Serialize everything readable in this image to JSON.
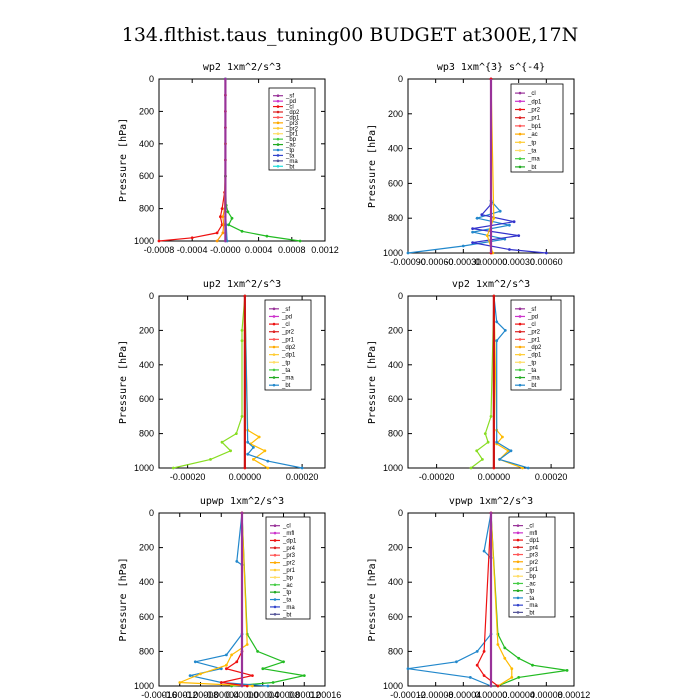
{
  "figure_title": "134.flthist.taus_tuning00  BUDGET at300E,17N",
  "chart_data": [
    {
      "type": "line",
      "title": "wp2  1xm^2/s^3",
      "ylabel": "Pressure [hPa]",
      "xlim": [
        -0.0008,
        0.0012
      ],
      "ylim": [
        1000,
        0
      ],
      "xticks": [
        -0.0008,
        -0.0004,
        0.0,
        0.0004,
        0.0008,
        0.0012
      ],
      "xtick_labels": [
        "-0.0008",
        "-0.0004",
        "-0.0000",
        "0.0004",
        "0.0008",
        "0.0012"
      ],
      "yticks": [
        0,
        200,
        400,
        600,
        800,
        1000
      ],
      "legend": [
        "_sf",
        "_pd",
        "_cl",
        "_dp2",
        "_dp1",
        "_pr3",
        "_pr2",
        "_pr1",
        "_bp",
        "_ac",
        "_tp",
        "_ta",
        "_ma",
        "_bt"
      ],
      "series": [
        {
          "name": "_dp1",
          "color": "#ee1111",
          "y": [
            0,
            100,
            200,
            300,
            400,
            500,
            600,
            700,
            800,
            850,
            900,
            950,
            980,
            1000
          ],
          "x": [
            0,
            0,
            0,
            0,
            0,
            0,
            0,
            -1e-05,
            -4e-05,
            -6e-05,
            -4e-05,
            -0.0001,
            -0.0004,
            -0.0008
          ]
        },
        {
          "name": "_pr3",
          "color": "#ff9900",
          "y": [
            0,
            400,
            800,
            850,
            900,
            950,
            1000
          ],
          "x": [
            0,
            0,
            -1e-05,
            -3e-05,
            -2e-05,
            -3e-05,
            -0.0001
          ]
        },
        {
          "name": "_ac",
          "color": "#22bb22",
          "y": [
            0,
            600,
            780,
            820,
            860,
            900,
            940,
            970,
            1000
          ],
          "x": [
            0,
            0,
            1e-05,
            3e-05,
            8e-05,
            4e-05,
            0.0002,
            0.0005,
            0.0009
          ]
        },
        {
          "name": "_tp",
          "color": "#2288cc",
          "y": [
            0,
            800,
            900,
            1000
          ],
          "x": [
            0,
            0,
            1e-05,
            2e-05
          ]
        },
        {
          "name": "_bt",
          "color": "#22dddd",
          "y": [
            0,
            1000
          ],
          "x": [
            0,
            0
          ]
        },
        {
          "name": "_cl",
          "color": "#993399",
          "y": [
            0,
            1000
          ],
          "x": [
            0,
            0
          ]
        }
      ]
    },
    {
      "type": "line",
      "title": "wp3  1xm^{3} s^{-4}",
      "ylabel": "Pressure [hPa]",
      "xlim": [
        -0.0009,
        0.0009
      ],
      "ylim": [
        1000,
        0
      ],
      "xticks": [
        -0.0009,
        -0.0006,
        -0.0003,
        0.0,
        0.0003,
        0.0006
      ],
      "xtick_labels": [
        "-0.00090",
        "-0.00060",
        "-0.00030",
        "0.00000",
        "0.00030",
        "0.00060"
      ],
      "yticks": [
        0,
        200,
        400,
        600,
        800,
        1000
      ],
      "legend": [
        "_cl",
        "_dp1",
        "_pr2",
        "_pr1",
        "_bp1",
        "_ac",
        "_tp",
        "_ta",
        "_ma",
        "_bt"
      ],
      "series": [
        {
          "name": "_tp",
          "color": "#2288cc",
          "y": [
            0,
            700,
            760,
            800,
            840,
            880,
            920,
            960,
            1000
          ],
          "x": [
            0,
            0,
            0.0001,
            -0.00015,
            0.0002,
            -0.0002,
            0.00015,
            -0.0003,
            -0.0009
          ]
        },
        {
          "name": "_ta",
          "color": "#3333cc",
          "y": [
            0,
            720,
            780,
            820,
            860,
            900,
            940,
            980,
            1000
          ],
          "x": [
            0,
            0,
            -0.0001,
            0.00025,
            -0.0002,
            0.0003,
            -0.0002,
            0.0002,
            0.0006
          ]
        },
        {
          "name": "_pr2",
          "color": "#ffbb00",
          "y": [
            0,
            800,
            900,
            1000
          ],
          "x": [
            0,
            3e-05,
            -4e-05,
            2e-05
          ]
        },
        {
          "name": "_cl",
          "color": "#993399",
          "y": [
            0,
            1000
          ],
          "x": [
            0,
            0
          ]
        },
        {
          "name": "_dp1",
          "color": "#ee1111",
          "y": [
            0,
            1000
          ],
          "x": [
            0,
            0
          ]
        }
      ]
    },
    {
      "type": "line",
      "title": "up2  1xm^2/s^3",
      "ylabel": "Pressure [hPa]",
      "xlim": [
        -0.0003,
        0.00028
      ],
      "ylim": [
        1000,
        0
      ],
      "xticks": [
        -0.0002,
        0.0,
        0.0002
      ],
      "xtick_labels": [
        "-0.00020",
        "0.00000",
        "0.00020"
      ],
      "yticks": [
        0,
        200,
        400,
        600,
        800,
        1000
      ],
      "legend": [
        "_sf",
        "_pd",
        "_cl",
        "_pr2",
        "_pr1",
        "_dp2",
        "_dp1",
        "_tp",
        "_ta",
        "_ma",
        "_bt"
      ],
      "series": [
        {
          "name": "_dp1",
          "color": "#88dd22",
          "y": [
            0,
            200,
            260,
            700,
            800,
            850,
            900,
            950,
            1000
          ],
          "x": [
            0,
            -1e-05,
            -1e-05,
            -1e-05,
            -3e-05,
            -8e-05,
            -5e-05,
            -0.00012,
            -0.00025
          ]
        },
        {
          "name": "_pr1",
          "color": "#ffbb00",
          "y": [
            0,
            780,
            820,
            860,
            900,
            950,
            1000
          ],
          "x": [
            0,
            1e-05,
            5e-05,
            2e-05,
            7e-05,
            3e-05,
            8e-05
          ]
        },
        {
          "name": "_tp",
          "color": "#2288cc",
          "y": [
            0,
            850,
            880,
            920,
            960,
            1000
          ],
          "x": [
            0,
            1e-05,
            3e-05,
            1e-05,
            8e-05,
            0.0002
          ]
        },
        {
          "name": "_cl",
          "color": "#ee1111",
          "y": [
            0,
            1000
          ],
          "x": [
            0,
            0
          ]
        }
      ]
    },
    {
      "type": "line",
      "title": "vp2  1xm^2/s^3",
      "ylabel": "Pressure [hPa]",
      "xlim": [
        -0.0003,
        0.00028
      ],
      "ylim": [
        1000,
        0
      ],
      "xticks": [
        -0.0002,
        0.0,
        0.0002
      ],
      "xtick_labels": [
        "-0.00020",
        "0.00000",
        "0.00020"
      ],
      "yticks": [
        0,
        200,
        400,
        600,
        800,
        1000
      ],
      "legend": [
        "_sf",
        "_pd",
        "_cl",
        "_pr2",
        "_pr1",
        "_dp2",
        "_dp1",
        "_tp",
        "_ta",
        "_ma",
        "_bt"
      ],
      "series": [
        {
          "name": "_dp1",
          "color": "#88dd22",
          "y": [
            0,
            700,
            800,
            850,
            900,
            950,
            1000
          ],
          "x": [
            0,
            -1e-05,
            -3e-05,
            -2e-05,
            -6e-05,
            -4e-05,
            -8e-05
          ]
        },
        {
          "name": "_pr1",
          "color": "#ffbb00",
          "y": [
            0,
            780,
            820,
            860,
            900,
            950,
            1000
          ],
          "x": [
            0,
            1e-05,
            3e-05,
            1e-05,
            5e-05,
            2e-05,
            0.0001
          ]
        },
        {
          "name": "_tp",
          "color": "#2288cc",
          "y": [
            0,
            150,
            200,
            260,
            850,
            900,
            950,
            1000
          ],
          "x": [
            0,
            1e-05,
            4e-05,
            1e-05,
            1e-05,
            6e-05,
            2e-05,
            0.00012
          ]
        },
        {
          "name": "_cl",
          "color": "#ee1111",
          "y": [
            0,
            1000
          ],
          "x": [
            0,
            0
          ]
        }
      ]
    },
    {
      "type": "line",
      "title": "upwp  1xm^2/s^3",
      "ylabel": "Pressure [hPa]",
      "xlim": [
        -0.00016,
        0.00016
      ],
      "ylim": [
        1000,
        0
      ],
      "xticks": [
        -0.00016,
        -0.00012,
        -8e-05,
        -4e-05,
        0.0,
        4e-05,
        8e-05,
        0.00012,
        0.00016
      ],
      "xtick_labels": [
        "-0.00016",
        "-0.00012",
        "-0.00008",
        "-0.00004",
        "0.00000",
        "0.00004",
        "0.00008",
        "0.00012",
        "0.00016"
      ],
      "yticks": [
        0,
        200,
        400,
        600,
        800,
        1000
      ],
      "legend": [
        "_cl",
        "_mfl",
        "_dp1",
        "_pr4",
        "_pr3",
        "_pr2",
        "_pr1",
        "_bp",
        "_ac",
        "_tp",
        "_ta",
        "_ma",
        "_bt"
      ],
      "series": [
        {
          "name": "_ac",
          "color": "#22bb22",
          "y": [
            0,
            700,
            800,
            860,
            900,
            940,
            980,
            1000
          ],
          "x": [
            0,
            1e-05,
            3e-05,
            8e-05,
            4e-05,
            0.00012,
            6e-05,
            -2e-05
          ]
        },
        {
          "name": "_tp",
          "color": "#2288cc",
          "y": [
            0,
            280,
            300,
            700,
            820,
            860,
            900,
            940,
            980,
            1000
          ],
          "x": [
            0,
            -1e-05,
            0.0,
            0.0,
            -3e-05,
            -9e-05,
            -4e-05,
            -0.0001,
            -4e-05,
            5e-05
          ]
        },
        {
          "name": "_pr1",
          "color": "#ffbb00",
          "y": [
            0,
            760,
            820,
            880,
            930,
            980,
            1000
          ],
          "x": [
            0,
            1e-05,
            -2e-05,
            -3e-05,
            -8e-05,
            -0.00012,
            2e-05
          ]
        },
        {
          "name": "_dp1",
          "color": "#ee1111",
          "y": [
            0,
            800,
            860,
            900,
            940,
            980,
            1000
          ],
          "x": [
            0,
            0,
            -1e-05,
            -3e-05,
            2e-05,
            -4e-05,
            1e-05
          ]
        },
        {
          "name": "_cl",
          "color": "#993399",
          "y": [
            0,
            1000
          ],
          "x": [
            0,
            0
          ]
        }
      ]
    },
    {
      "type": "line",
      "title": "vpwp  1xm^2/s^3",
      "ylabel": "Pressure [hPa]",
      "xlim": [
        -0.00012,
        0.00012
      ],
      "ylim": [
        1000,
        0
      ],
      "xticks": [
        -0.00012,
        -8e-05,
        -4e-05,
        0.0,
        4e-05,
        8e-05,
        0.00012
      ],
      "xtick_labels": [
        "-0.00012",
        "-0.00008",
        "-0.00004",
        "0.00000",
        "0.00004",
        "0.00008",
        "0.00012"
      ],
      "yticks": [
        0,
        200,
        400,
        600,
        800,
        1000
      ],
      "legend": [
        "_cl",
        "_mfl",
        "_dp1",
        "_pr4",
        "_pr3",
        "_pr2",
        "_pr1",
        "_bp",
        "_ac",
        "_tp",
        "_ta",
        "_ma",
        "_bt"
      ],
      "series": [
        {
          "name": "_ac",
          "color": "#22bb22",
          "y": [
            0,
            700,
            780,
            840,
            880,
            910,
            950,
            1000
          ],
          "x": [
            0,
            1e-05,
            2e-05,
            4e-05,
            6e-05,
            0.00011,
            4e-05,
            1e-05
          ]
        },
        {
          "name": "_tp",
          "color": "#2288cc",
          "y": [
            0,
            220,
            260,
            700,
            800,
            860,
            900,
            950,
            1000
          ],
          "x": [
            0,
            -1e-05,
            0.0,
            0.0,
            -2e-05,
            -5e-05,
            -0.00012,
            -3e-05,
            0.0
          ]
        },
        {
          "name": "_pr1",
          "color": "#ffbb00",
          "y": [
            0,
            760,
            840,
            900,
            950,
            1000
          ],
          "x": [
            0,
            1e-05,
            2e-05,
            3e-05,
            3e-05,
            1e-05
          ]
        },
        {
          "name": "_dp1",
          "color": "#ee1111",
          "y": [
            0,
            800,
            880,
            940,
            1000
          ],
          "x": [
            0,
            -1e-05,
            -2e-05,
            -1e-05,
            1e-05
          ]
        },
        {
          "name": "_cl",
          "color": "#993399",
          "y": [
            0,
            1000
          ],
          "x": [
            0,
            0
          ]
        }
      ]
    }
  ]
}
